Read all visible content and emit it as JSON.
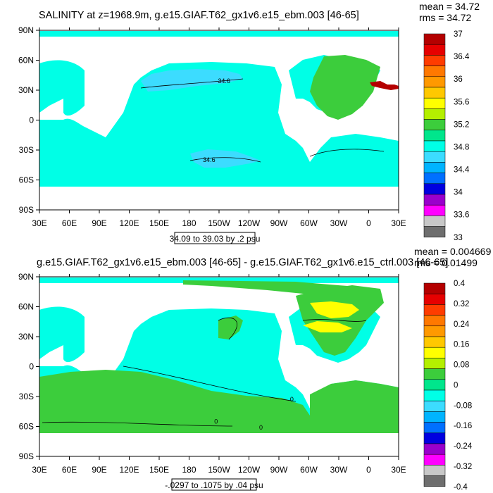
{
  "chart_data": [
    {
      "type": "heatmap",
      "title": "SALINITY at z=1968.9m, g.e15.GIAF.T62_gx1v6.e15_ebm.003 [46-65]",
      "stats": {
        "mean": "mean = 34.72",
        "rms": "rms = 34.72"
      },
      "x_tick_labels": [
        "30E",
        "60E",
        "90E",
        "120E",
        "150E",
        "180",
        "150W",
        "120W",
        "90W",
        "60W",
        "30W",
        "0",
        "30E"
      ],
      "y_tick_labels": [
        "90N",
        "60N",
        "30N",
        "0",
        "30S",
        "60S",
        "90S"
      ],
      "x_range_deg": [
        30,
        390
      ],
      "y_range_deg": [
        -90,
        90
      ],
      "contour_info": "34.09 to 39.03 by .2 psu",
      "contour_labels": [
        {
          "text": "34.6",
          "lon": 215,
          "lat": 37
        },
        {
          "text": "34.6",
          "lon": 200,
          "lat": -42
        }
      ],
      "colorbar": {
        "colors": [
          "#6e6e6e",
          "#c8c8c8",
          "#ff00ff",
          "#9900cc",
          "#0000e0",
          "#0070ff",
          "#00b4ff",
          "#3cdcff",
          "#00ffe6",
          "#00e68c",
          "#3ccd3c",
          "#b4f000",
          "#ffff00",
          "#ffc800",
          "#ff9900",
          "#ff7800",
          "#ff3c00",
          "#e60000",
          "#b40000"
        ],
        "labels": [
          "37",
          "36.4",
          "36",
          "35.6",
          "35.2",
          "34.8",
          "34.4",
          "34",
          "33.6",
          "33"
        ]
      }
    },
    {
      "type": "heatmap",
      "title": "g.e15.GIAF.T62_gx1v6.e15_ebm.003 [46-65] - g.e15.GIAF.T62_gx1v6.e15_ctrl.003 [46-65]",
      "stats": {
        "mean": "mean = 0.004669",
        "rms": "rms = 0.01499"
      },
      "x_tick_labels": [
        "30E",
        "60E",
        "90E",
        "120E",
        "150E",
        "180",
        "150W",
        "120W",
        "90W",
        "60W",
        "30W",
        "0",
        "30E"
      ],
      "y_tick_labels": [
        "90N",
        "60N",
        "30N",
        "0",
        "30S",
        "60S",
        "90S"
      ],
      "x_range_deg": [
        30,
        390
      ],
      "y_range_deg": [
        -90,
        90
      ],
      "contour_info": "-.0297 to .1075 by .04 psu",
      "contour_labels": [
        {
          "text": "0",
          "lon": 283,
          "lat": -35
        },
        {
          "text": "0",
          "lon": 207,
          "lat": -57
        },
        {
          "text": "0",
          "lon": 252,
          "lat": -63
        }
      ],
      "colorbar": {
        "colors": [
          "#6e6e6e",
          "#c8c8c8",
          "#ff00ff",
          "#9900cc",
          "#0000e0",
          "#0070ff",
          "#00b4ff",
          "#3cdcff",
          "#00ffe6",
          "#00e68c",
          "#3ccd3c",
          "#b4f000",
          "#ffff00",
          "#ffc800",
          "#ff9900",
          "#ff7800",
          "#ff3c00",
          "#e60000",
          "#b40000"
        ],
        "labels": [
          "0.4",
          "0.32",
          "0.24",
          "0.16",
          "0.08",
          "0",
          "-0.08",
          "-0.16",
          "-0.24",
          "-0.32",
          "-0.4"
        ]
      }
    }
  ]
}
